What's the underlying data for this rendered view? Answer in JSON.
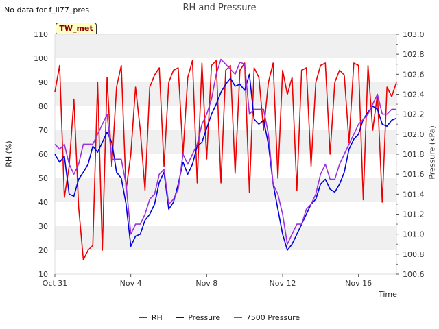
{
  "header": {
    "title": "RH and Pressure",
    "no_data_note": "No data for f_li77_pres",
    "site_badge": "TW_met"
  },
  "chart_data": {
    "type": "line",
    "title": "RH and Pressure",
    "xlabel": "Time",
    "ylabel_left": "RH (%)",
    "ylabel_right": "Pressure (kPa)",
    "x_range_days": [
      "Oct 31",
      "Nov 18"
    ],
    "x_tick_labels": [
      "Oct 31",
      "Nov 4",
      "Nov 8",
      "Nov 12",
      "Nov 16"
    ],
    "ylim_left": [
      10,
      110
    ],
    "ylim_right": [
      100.6,
      103.0
    ],
    "yticks_left": [
      "10",
      "20",
      "30",
      "40",
      "50",
      "60",
      "70",
      "80",
      "90",
      "100",
      "110"
    ],
    "yticks_right": [
      "100.6",
      "100.8",
      "101.0",
      "101.2",
      "101.4",
      "101.6",
      "101.8",
      "102.0",
      "102.2",
      "102.4",
      "102.6",
      "102.8",
      "103.0"
    ],
    "grid": "alternating horizontal bands",
    "legend_position": "bottom-center",
    "series": [
      {
        "name": "RH",
        "axis": "left",
        "color": "#ee0000",
        "x": [
          "Oct 31 00:00",
          "Oct 31 06:00",
          "Oct 31 12:00",
          "Oct 31 18:00",
          "Nov 1 00:00",
          "Nov 1 06:00",
          "Nov 1 12:00",
          "Nov 1 18:00",
          "Nov 2 00:00",
          "Nov 2 06:00",
          "Nov 2 12:00",
          "Nov 2 18:00",
          "Nov 3 00:00",
          "Nov 3 06:00",
          "Nov 3 12:00",
          "Nov 3 18:00",
          "Nov 4 00:00",
          "Nov 4 06:00",
          "Nov 4 12:00",
          "Nov 4 18:00",
          "Nov 5 00:00",
          "Nov 5 06:00",
          "Nov 5 12:00",
          "Nov 5 18:00",
          "Nov 6 00:00",
          "Nov 6 06:00",
          "Nov 6 12:00",
          "Nov 6 18:00",
          "Nov 7 00:00",
          "Nov 7 06:00",
          "Nov 7 12:00",
          "Nov 7 18:00",
          "Nov 8 00:00",
          "Nov 8 06:00",
          "Nov 8 12:00",
          "Nov 8 18:00",
          "Nov 9 00:00",
          "Nov 9 06:00",
          "Nov 9 12:00",
          "Nov 9 18:00",
          "Nov 10 00:00",
          "Nov 10 06:00",
          "Nov 10 12:00",
          "Nov 10 18:00",
          "Nov 11 00:00",
          "Nov 11 06:00",
          "Nov 11 12:00",
          "Nov 11 18:00",
          "Nov 12 00:00",
          "Nov 12 06:00",
          "Nov 12 12:00",
          "Nov 12 18:00",
          "Nov 13 00:00",
          "Nov 13 06:00",
          "Nov 13 12:00",
          "Nov 13 18:00",
          "Nov 14 00:00",
          "Nov 14 06:00",
          "Nov 14 12:00",
          "Nov 14 18:00",
          "Nov 15 00:00",
          "Nov 15 06:00",
          "Nov 15 12:00",
          "Nov 15 18:00",
          "Nov 16 00:00",
          "Nov 16 06:00",
          "Nov 16 12:00",
          "Nov 16 18:00",
          "Nov 17 00:00",
          "Nov 17 06:00",
          "Nov 17 12:00",
          "Nov 17 18:00",
          "Nov 18 00:00"
        ],
        "values": [
          86,
          97,
          42,
          55,
          83,
          38,
          16,
          20,
          22,
          90,
          20,
          92,
          55,
          88,
          97,
          45,
          60,
          88,
          70,
          45,
          88,
          93,
          96,
          55,
          90,
          95,
          96,
          60,
          92,
          99,
          48,
          98,
          58,
          97,
          99,
          48,
          95,
          97,
          52,
          95,
          98,
          44,
          96,
          92,
          70,
          90,
          98,
          50,
          95,
          85,
          92,
          45,
          95,
          96,
          55,
          90,
          97,
          98,
          60,
          90,
          95,
          93,
          65,
          98,
          97,
          41,
          97,
          70,
          85,
          40,
          88,
          84,
          90
        ]
      },
      {
        "name": "Pressure",
        "axis": "right",
        "color": "#0000dd",
        "x": [
          "Oct 31 00:00",
          "Oct 31 06:00",
          "Oct 31 12:00",
          "Oct 31 18:00",
          "Nov 1 00:00",
          "Nov 1 06:00",
          "Nov 1 12:00",
          "Nov 1 18:00",
          "Nov 2 00:00",
          "Nov 2 06:00",
          "Nov 2 12:00",
          "Nov 2 18:00",
          "Nov 3 00:00",
          "Nov 3 06:00",
          "Nov 3 12:00",
          "Nov 3 18:00",
          "Nov 4 00:00",
          "Nov 4 06:00",
          "Nov 4 12:00",
          "Nov 4 18:00",
          "Nov 5 00:00",
          "Nov 5 06:00",
          "Nov 5 12:00",
          "Nov 5 18:00",
          "Nov 6 00:00",
          "Nov 6 06:00",
          "Nov 6 12:00",
          "Nov 6 18:00",
          "Nov 7 00:00",
          "Nov 7 06:00",
          "Nov 7 12:00",
          "Nov 7 18:00",
          "Nov 8 00:00",
          "Nov 8 06:00",
          "Nov 8 12:00",
          "Nov 8 18:00",
          "Nov 9 00:00",
          "Nov 9 06:00",
          "Nov 9 12:00",
          "Nov 9 18:00",
          "Nov 10 00:00",
          "Nov 10 06:00",
          "Nov 10 12:00",
          "Nov 10 18:00",
          "Nov 11 00:00",
          "Nov 11 06:00",
          "Nov 11 12:00",
          "Nov 11 18:00",
          "Nov 12 00:00",
          "Nov 12 06:00",
          "Nov 12 12:00",
          "Nov 12 18:00",
          "Nov 13 00:00",
          "Nov 13 06:00",
          "Nov 13 12:00",
          "Nov 13 18:00",
          "Nov 14 00:00",
          "Nov 14 06:00",
          "Nov 14 12:00",
          "Nov 14 18:00",
          "Nov 15 00:00",
          "Nov 15 06:00",
          "Nov 15 12:00",
          "Nov 15 18:00",
          "Nov 16 00:00",
          "Nov 16 06:00",
          "Nov 16 12:00",
          "Nov 16 18:00",
          "Nov 17 00:00",
          "Nov 17 06:00",
          "Nov 17 12:00",
          "Nov 17 18:00",
          "Nov 18 00:00"
        ],
        "values": [
          101.8,
          101.72,
          101.78,
          101.4,
          101.38,
          101.55,
          101.62,
          101.7,
          101.88,
          101.82,
          101.92,
          102.02,
          101.92,
          101.62,
          101.56,
          101.3,
          100.88,
          100.98,
          101.0,
          101.14,
          101.2,
          101.3,
          101.52,
          101.62,
          101.25,
          101.32,
          101.5,
          101.72,
          101.6,
          101.7,
          101.88,
          101.92,
          102.06,
          102.2,
          102.3,
          102.42,
          102.5,
          102.56,
          102.48,
          102.5,
          102.44,
          102.6,
          102.15,
          102.1,
          102.14,
          101.9,
          101.5,
          101.25,
          101.0,
          100.84,
          100.9,
          101.0,
          101.1,
          101.2,
          101.3,
          101.35,
          101.5,
          101.55,
          101.45,
          101.42,
          101.5,
          101.62,
          101.85,
          101.95,
          102.0,
          102.15,
          102.22,
          102.28,
          102.25,
          102.1,
          102.08,
          102.14,
          102.16
        ]
      },
      {
        "name": "7500 Pressure",
        "axis": "right",
        "color": "#9933dd",
        "x": [
          "Oct 31 00:00",
          "Oct 31 06:00",
          "Oct 31 12:00",
          "Oct 31 18:00",
          "Nov 1 00:00",
          "Nov 1 06:00",
          "Nov 1 12:00",
          "Nov 1 18:00",
          "Nov 2 00:00",
          "Nov 2 06:00",
          "Nov 2 12:00",
          "Nov 2 18:00",
          "Nov 3 00:00",
          "Nov 3 06:00",
          "Nov 3 12:00",
          "Nov 3 18:00",
          "Nov 4 00:00",
          "Nov 4 06:00",
          "Nov 4 12:00",
          "Nov 4 18:00",
          "Nov 5 00:00",
          "Nov 5 06:00",
          "Nov 5 12:00",
          "Nov 5 18:00",
          "Nov 6 00:00",
          "Nov 6 06:00",
          "Nov 6 12:00",
          "Nov 6 18:00",
          "Nov 7 00:00",
          "Nov 7 06:00",
          "Nov 7 12:00",
          "Nov 7 18:00",
          "Nov 8 00:00",
          "Nov 8 06:00",
          "Nov 8 12:00",
          "Nov 8 18:00",
          "Nov 9 00:00",
          "Nov 9 06:00",
          "Nov 9 12:00",
          "Nov 9 18:00",
          "Nov 10 00:00",
          "Nov 10 06:00",
          "Nov 10 12:00",
          "Nov 10 18:00",
          "Nov 11 00:00",
          "Nov 11 06:00",
          "Nov 11 12:00",
          "Nov 11 18:00",
          "Nov 12 00:00",
          "Nov 12 06:00",
          "Nov 12 12:00",
          "Nov 12 18:00",
          "Nov 13 00:00",
          "Nov 13 06:00",
          "Nov 13 12:00",
          "Nov 13 18:00",
          "Nov 14 00:00",
          "Nov 14 06:00",
          "Nov 14 12:00",
          "Nov 14 18:00",
          "Nov 15 00:00",
          "Nov 15 06:00",
          "Nov 15 12:00",
          "Nov 15 18:00",
          "Nov 16 00:00",
          "Nov 16 06:00",
          "Nov 16 12:00",
          "Nov 16 18:00",
          "Nov 17 00:00",
          "Nov 17 06:00",
          "Nov 17 12:00",
          "Nov 17 18:00",
          "Nov 18 00:00"
        ],
        "values": [
          101.9,
          101.85,
          101.9,
          101.7,
          101.6,
          101.7,
          101.9,
          101.9,
          101.9,
          102.0,
          102.1,
          102.2,
          101.75,
          101.75,
          101.75,
          101.5,
          101.0,
          101.1,
          101.1,
          101.2,
          101.35,
          101.4,
          101.6,
          101.65,
          101.3,
          101.35,
          101.45,
          101.8,
          101.7,
          101.8,
          101.9,
          102.1,
          102.2,
          102.35,
          102.6,
          102.75,
          102.7,
          102.65,
          102.6,
          102.72,
          102.7,
          102.2,
          102.25,
          102.25,
          102.25,
          102.0,
          101.5,
          101.4,
          101.2,
          100.9,
          101.0,
          101.1,
          101.1,
          101.25,
          101.3,
          101.4,
          101.6,
          101.7,
          101.55,
          101.55,
          101.7,
          101.8,
          101.9,
          102.0,
          102.1,
          102.15,
          102.2,
          102.3,
          102.4,
          102.2,
          102.2,
          102.25,
          102.25
        ]
      }
    ]
  }
}
